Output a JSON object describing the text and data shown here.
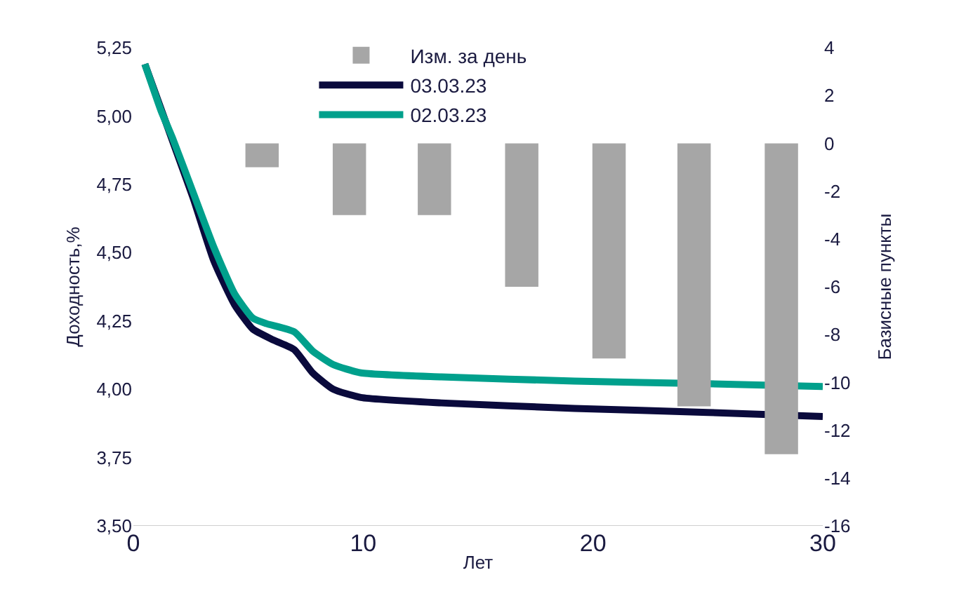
{
  "chart_data": {
    "type": "line",
    "xlabel": "Лет",
    "ylabel": "Доходность,%",
    "y2label": "Базисные пункты",
    "xlim": [
      0,
      30
    ],
    "xticks": [
      0,
      10,
      20,
      30
    ],
    "ylim": [
      3.5,
      5.25
    ],
    "yticks": [
      {
        "value": 3.5,
        "label": "3,50"
      },
      {
        "value": 3.75,
        "label": "3,75"
      },
      {
        "value": 4.0,
        "label": "4,00"
      },
      {
        "value": 4.25,
        "label": "4,25"
      },
      {
        "value": 4.5,
        "label": "4,50"
      },
      {
        "value": 4.75,
        "label": "4,75"
      },
      {
        "value": 5.0,
        "label": "5,00"
      },
      {
        "value": 5.25,
        "label": "5,25"
      }
    ],
    "y2lim": [
      -16,
      4
    ],
    "y2ticks": [
      -16,
      -14,
      -12,
      -10,
      -8,
      -6,
      -4,
      -2,
      0,
      2,
      4
    ],
    "legend": "top",
    "series": [
      {
        "name": "Изм. за день",
        "type": "bar",
        "axis": "y2",
        "color": "#a6a6a6",
        "x": [
          5.6,
          9.4,
          13.1,
          16.9,
          20.7,
          24.4,
          28.2
        ],
        "values": [
          -1,
          -3,
          -3,
          -6,
          -9,
          -11,
          -13
        ]
      },
      {
        "name": "03.03.23",
        "color": "#0a0a3c",
        "x": [
          0.5,
          1.7,
          2.6,
          3.5,
          4.4,
          5.2,
          6.1,
          7.0,
          7.8,
          8.7,
          9.9,
          13.4,
          19.2,
          25.0,
          30.0
        ],
        "values": [
          5.19,
          4.91,
          4.7,
          4.47,
          4.31,
          4.22,
          4.18,
          4.145,
          4.06,
          4.0,
          3.97,
          3.95,
          3.93,
          3.915,
          3.9
        ]
      },
      {
        "name": "02.03.23",
        "color": "#00a08c",
        "x": [
          0.5,
          1.2,
          1.7,
          2.6,
          3.5,
          4.4,
          5.2,
          5.8,
          7.0,
          7.8,
          8.7,
          9.9,
          13.4,
          19.2,
          25.0,
          30.0
        ],
        "values": [
          5.19,
          5.02,
          4.92,
          4.72,
          4.52,
          4.35,
          4.26,
          4.24,
          4.21,
          4.14,
          4.09,
          4.06,
          4.045,
          4.03,
          4.02,
          4.01
        ]
      }
    ]
  }
}
